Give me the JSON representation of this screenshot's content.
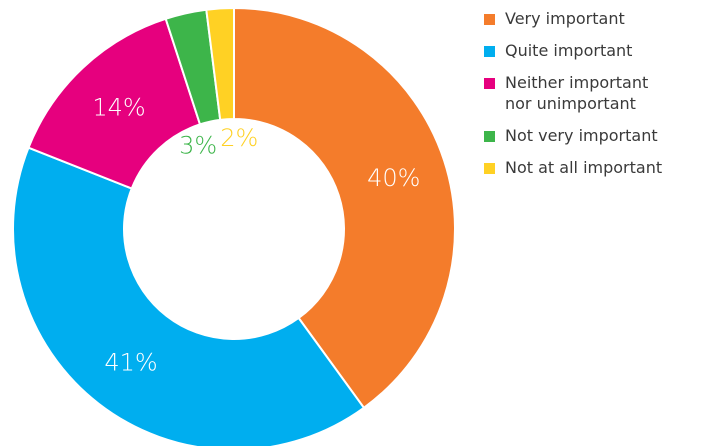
{
  "chart_data": {
    "type": "pie",
    "title": "",
    "donut": true,
    "legend_position": "right",
    "slices": [
      {
        "label": "Very important",
        "value": 40,
        "display": "40%",
        "color": "#F47C2B"
      },
      {
        "label": "Quite important",
        "value": 41,
        "display": "41%",
        "color": "#00AEEF"
      },
      {
        "label": "Neither important nor unimportant",
        "value": 14,
        "display": "14%",
        "color": "#E6007E"
      },
      {
        "label": "Not very important",
        "value": 3,
        "display": "3%",
        "color": "#3DB54A"
      },
      {
        "label": "Not at all important",
        "value": 2,
        "display": "2%",
        "color": "#FFD124"
      }
    ],
    "legend": [
      {
        "lines": [
          "Very important"
        ],
        "color": "#F47C2B"
      },
      {
        "lines": [
          "Quite important"
        ],
        "color": "#00AEEF"
      },
      {
        "lines": [
          "Neither important",
          "nor unimportant"
        ],
        "color": "#E6007E"
      },
      {
        "lines": [
          "Not very important"
        ],
        "color": "#3DB54A"
      },
      {
        "lines": [
          "Not at all important"
        ],
        "color": "#FFD124"
      }
    ]
  }
}
